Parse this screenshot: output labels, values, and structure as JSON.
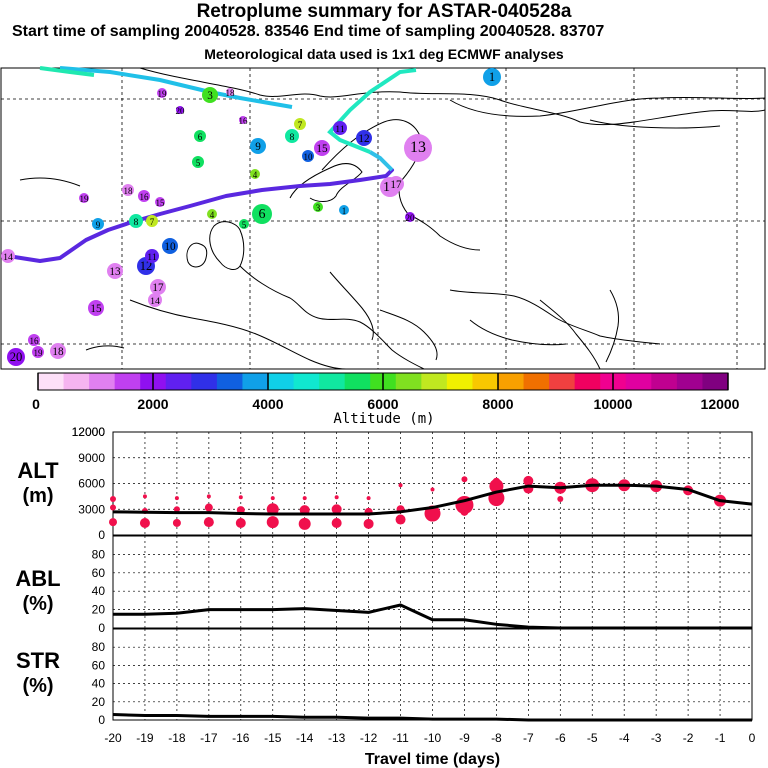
{
  "header": {
    "title": "Retroplume summary for ASTAR-040528a",
    "subtitle": "Start time of sampling 20040528. 83546     End time of sampling 20040528. 83707",
    "met_note": "Meteorological data used is 1x1 deg ECMWF analyses"
  },
  "colorbar": {
    "label": "Altitude (m)",
    "tick_labels": [
      "0",
      "2000",
      "4000",
      "6000",
      "8000",
      "10000",
      "12000"
    ],
    "colors": [
      "#fde0f8",
      "#f5b4f0",
      "#e080f0",
      "#c040f0",
      "#9010f0",
      "#6020f0",
      "#3030e8",
      "#1060e0",
      "#10a0e8",
      "#10d0e8",
      "#10e8d0",
      "#10e8a0",
      "#10e060",
      "#40e020",
      "#80e020",
      "#c0e820",
      "#f0f000",
      "#f8c800",
      "#f8a000",
      "#f07000",
      "#f04040",
      "#f00060",
      "#f00090",
      "#e000a0",
      "#c00090",
      "#a00090",
      "#800080"
    ]
  },
  "map": {
    "trajectory_color": "#1a1a8a",
    "clusters": [
      {
        "label": "20",
        "lon": -20,
        "alt": 1800
      },
      {
        "label": "19",
        "lon": -19,
        "alt": 1500
      },
      {
        "label": "18",
        "lon": -18,
        "alt": 1200
      },
      {
        "label": "16",
        "lon": -16,
        "alt": 1600
      },
      {
        "label": "15",
        "lon": -15,
        "alt": 1400
      },
      {
        "label": "14",
        "lon": -14,
        "alt": 1300
      },
      {
        "label": "17",
        "lon": -17,
        "alt": 1200
      },
      {
        "label": "13",
        "lon": -13,
        "alt": 1000
      },
      {
        "label": "12",
        "lon": -12,
        "alt": 2800
      },
      {
        "label": "11",
        "lon": -11,
        "alt": 2300
      },
      {
        "label": "10",
        "lon": -10,
        "alt": 3400
      },
      {
        "label": "9",
        "lon": -9,
        "alt": 3600
      },
      {
        "label": "8",
        "lon": -8,
        "alt": 5300
      },
      {
        "label": "7",
        "lon": -7,
        "alt": 6800
      },
      {
        "label": "6",
        "lon": -6,
        "alt": 5500
      },
      {
        "label": "5",
        "lon": -5,
        "alt": 5700
      },
      {
        "label": "4",
        "lon": -4,
        "alt": 6500
      },
      {
        "label": "3",
        "lon": -3,
        "alt": 5800
      },
      {
        "label": "1",
        "lon": -1,
        "alt": 3700
      }
    ]
  },
  "chart_data": [
    {
      "type": "line",
      "title": "ALT",
      "ylabel": "(m)",
      "x": [
        -20,
        -19,
        -18,
        -17,
        -16,
        -15,
        -14,
        -13,
        -12,
        -11,
        -10,
        -9,
        -8,
        -7,
        -6,
        -5,
        -4,
        -3,
        -2,
        -1,
        0
      ],
      "ylim": [
        0,
        12000
      ],
      "yticks": [
        0,
        3000,
        6000,
        9000,
        12000
      ],
      "series": [
        {
          "name": "mean altitude",
          "values": [
            2700,
            2650,
            2600,
            2600,
            2500,
            2450,
            2450,
            2450,
            2450,
            2700,
            3200,
            4000,
            5000,
            5700,
            5500,
            5800,
            5800,
            5700,
            5300,
            4000,
            3600
          ]
        }
      ],
      "clusters": [
        {
          "x": -20,
          "alt": [
            1500,
            3200,
            4200
          ],
          "size": [
            4,
            3,
            3
          ]
        },
        {
          "x": -19,
          "alt": [
            1400,
            2800,
            4500
          ],
          "size": [
            5,
            3,
            2
          ]
        },
        {
          "x": -18,
          "alt": [
            1400,
            3000,
            4300
          ],
          "size": [
            4,
            3,
            2
          ]
        },
        {
          "x": -17,
          "alt": [
            1500,
            3200,
            4500
          ],
          "size": [
            5,
            4,
            2
          ]
        },
        {
          "x": -16,
          "alt": [
            1400,
            2900,
            4400
          ],
          "size": [
            5,
            4,
            2
          ]
        },
        {
          "x": -15,
          "alt": [
            1500,
            3000,
            4300
          ],
          "size": [
            6,
            6,
            2
          ]
        },
        {
          "x": -14,
          "alt": [
            1300,
            2900,
            4300
          ],
          "size": [
            6,
            5,
            2
          ]
        },
        {
          "x": -13,
          "alt": [
            1400,
            3000,
            4400
          ],
          "size": [
            5,
            5,
            2
          ]
        },
        {
          "x": -12,
          "alt": [
            1300,
            2700,
            4300
          ],
          "size": [
            5,
            4,
            2
          ]
        },
        {
          "x": -11,
          "alt": [
            1800,
            3000,
            5800
          ],
          "size": [
            5,
            4,
            2
          ]
        },
        {
          "x": -10,
          "alt": [
            2500,
            5300
          ],
          "size": [
            8,
            2
          ]
        },
        {
          "x": -9,
          "alt": [
            3500,
            2700,
            6500
          ],
          "size": [
            9,
            4,
            3
          ]
        },
        {
          "x": -8,
          "alt": [
            4300,
            5700,
            6200
          ],
          "size": [
            8,
            7,
            4
          ]
        },
        {
          "x": -7,
          "alt": [
            6300,
            5400
          ],
          "size": [
            5,
            5
          ]
        },
        {
          "x": -6,
          "alt": [
            5500,
            4200
          ],
          "size": [
            6,
            3
          ]
        },
        {
          "x": -5,
          "alt": [
            5800
          ],
          "size": [
            7
          ]
        },
        {
          "x": -4,
          "alt": [
            5800
          ],
          "size": [
            6
          ]
        },
        {
          "x": -3,
          "alt": [
            5700
          ],
          "size": [
            6
          ]
        },
        {
          "x": -2,
          "alt": [
            5200
          ],
          "size": [
            5
          ]
        },
        {
          "x": -1,
          "alt": [
            4000
          ],
          "size": [
            6
          ]
        }
      ]
    },
    {
      "type": "line",
      "title": "ABL",
      "ylabel": "(%)",
      "x": [
        -20,
        -19,
        -18,
        -17,
        -16,
        -15,
        -14,
        -13,
        -12,
        -11,
        -10,
        -9,
        -8,
        -7,
        -6,
        -5,
        -4,
        -3,
        -2,
        -1,
        0
      ],
      "ylim": [
        0,
        100
      ],
      "yticks": [
        0,
        20,
        40,
        60,
        80
      ],
      "series": [
        {
          "name": "ABL fraction",
          "values": [
            15,
            15,
            16,
            20,
            20,
            20,
            21,
            19,
            17,
            25,
            9,
            9,
            4,
            1,
            0,
            0,
            0,
            0,
            0,
            0,
            0
          ]
        }
      ]
    },
    {
      "type": "line",
      "title": "STR",
      "ylabel": "(%)",
      "x": [
        -20,
        -19,
        -18,
        -17,
        -16,
        -15,
        -14,
        -13,
        -12,
        -11,
        -10,
        -9,
        -8,
        -7,
        -6,
        -5,
        -4,
        -3,
        -2,
        -1,
        0
      ],
      "ylim": [
        0,
        100
      ],
      "yticks": [
        0,
        20,
        40,
        60,
        80
      ],
      "xlabel": "Travel time (days)",
      "xtick_labels": [
        "-20",
        "-19",
        "-18",
        "-17",
        "-16",
        "-15",
        "-14",
        "-13",
        "-12",
        "-11",
        "-10",
        "-9",
        "-8",
        "-7",
        "-6",
        "-5",
        "-4",
        "-3",
        "-2",
        "-1",
        "0"
      ],
      "series": [
        {
          "name": "stratospheric fraction",
          "values": [
            6,
            5,
            5,
            4,
            4,
            4,
            3,
            3,
            2,
            2,
            1,
            1,
            1,
            0,
            0,
            0,
            0,
            0,
            0,
            0,
            0
          ]
        }
      ]
    }
  ]
}
